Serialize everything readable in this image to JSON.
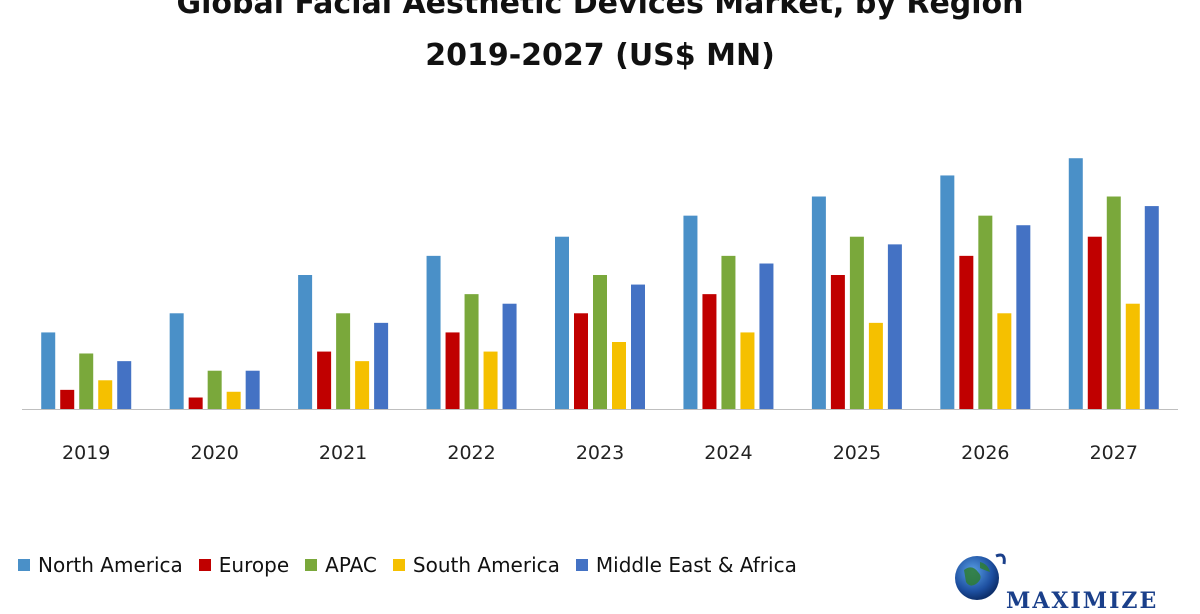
{
  "chart_data": {
    "type": "bar",
    "title": "Global Facial Aesthetic Devices Market, by Region",
    "subtitle": "2019-2027 (US$ MN)",
    "categories": [
      "2019",
      "2020",
      "2021",
      "2022",
      "2023",
      "2024",
      "2025",
      "2026",
      "2027"
    ],
    "series": [
      {
        "name": "North America",
        "color": "#4a90c8",
        "values": [
          40,
          50,
          70,
          80,
          90,
          101,
          111,
          122,
          131
        ]
      },
      {
        "name": "Europe",
        "color": "#c00000",
        "values": [
          10,
          6,
          30,
          40,
          50,
          60,
          70,
          80,
          90
        ]
      },
      {
        "name": "APAC",
        "color": "#7aa83b",
        "values": [
          29,
          20,
          50,
          60,
          70,
          80,
          90,
          101,
          111
        ]
      },
      {
        "name": "South America",
        "color": "#f5c000",
        "values": [
          15,
          9,
          25,
          30,
          35,
          40,
          45,
          50,
          55
        ]
      },
      {
        "name": "Middle East & Africa",
        "color": "#4472c4",
        "values": [
          25,
          20,
          45,
          55,
          65,
          76,
          86,
          96,
          106
        ]
      }
    ],
    "xlabel": "",
    "ylabel": "",
    "ylim": [
      0,
      140
    ],
    "grid": false,
    "legend_position": "bottom-left"
  },
  "logo": {
    "text": "MAXIMIZE",
    "icon": "globe-icon"
  }
}
